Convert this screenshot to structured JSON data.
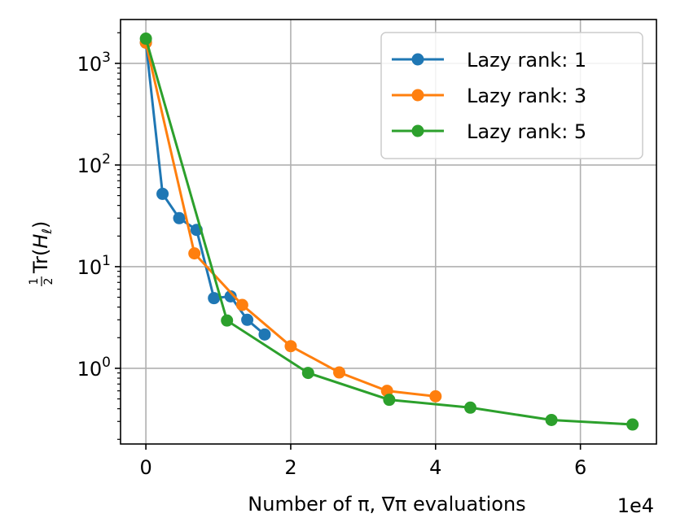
{
  "chart_data": {
    "type": "line",
    "xlabel": "Number of π, ∇π evaluations",
    "ylabel_parts": {
      "frac_num": "1",
      "frac_den": "2",
      "func": "Tr(",
      "var": "H",
      "sub": "ℓ",
      "close": ")"
    },
    "x_offset_text": "1e4",
    "x_scale": 10000,
    "xlim": [
      -3500,
      70500
    ],
    "ylim": [
      0.18,
      2700
    ],
    "yscale": "log",
    "grid": true,
    "legend_position": "top-right",
    "x_ticks": [
      0,
      20000,
      40000,
      60000
    ],
    "x_tick_labels": [
      "0",
      "2",
      "4",
      "6"
    ],
    "y_ticks": [
      1,
      10,
      100,
      1000
    ],
    "y_tick_labels": [
      {
        "base": "10",
        "exp": "0"
      },
      {
        "base": "10",
        "exp": "1"
      },
      {
        "base": "10",
        "exp": "2"
      },
      {
        "base": "10",
        "exp": "3"
      }
    ],
    "series": [
      {
        "name": "Lazy rank: 1",
        "color": "#1f77b4",
        "x": [
          0,
          2300,
          4600,
          7000,
          9400,
          11700,
          14000,
          16400
        ],
        "y": [
          1600,
          52,
          30,
          23,
          4.9,
          5.1,
          3.0,
          2.15
        ]
      },
      {
        "name": "Lazy rank: 3",
        "color": "#ff7f0e",
        "x": [
          0,
          6700,
          13300,
          20000,
          26700,
          33300,
          40000
        ],
        "y": [
          1600,
          13.5,
          4.2,
          1.65,
          0.91,
          0.6,
          0.53
        ]
      },
      {
        "name": "Lazy rank: 5",
        "color": "#2ca02c",
        "x": [
          0,
          11200,
          22400,
          33600,
          44800,
          56000,
          67200
        ],
        "y": [
          1750,
          2.95,
          0.9,
          0.49,
          0.41,
          0.31,
          0.28
        ]
      }
    ]
  }
}
